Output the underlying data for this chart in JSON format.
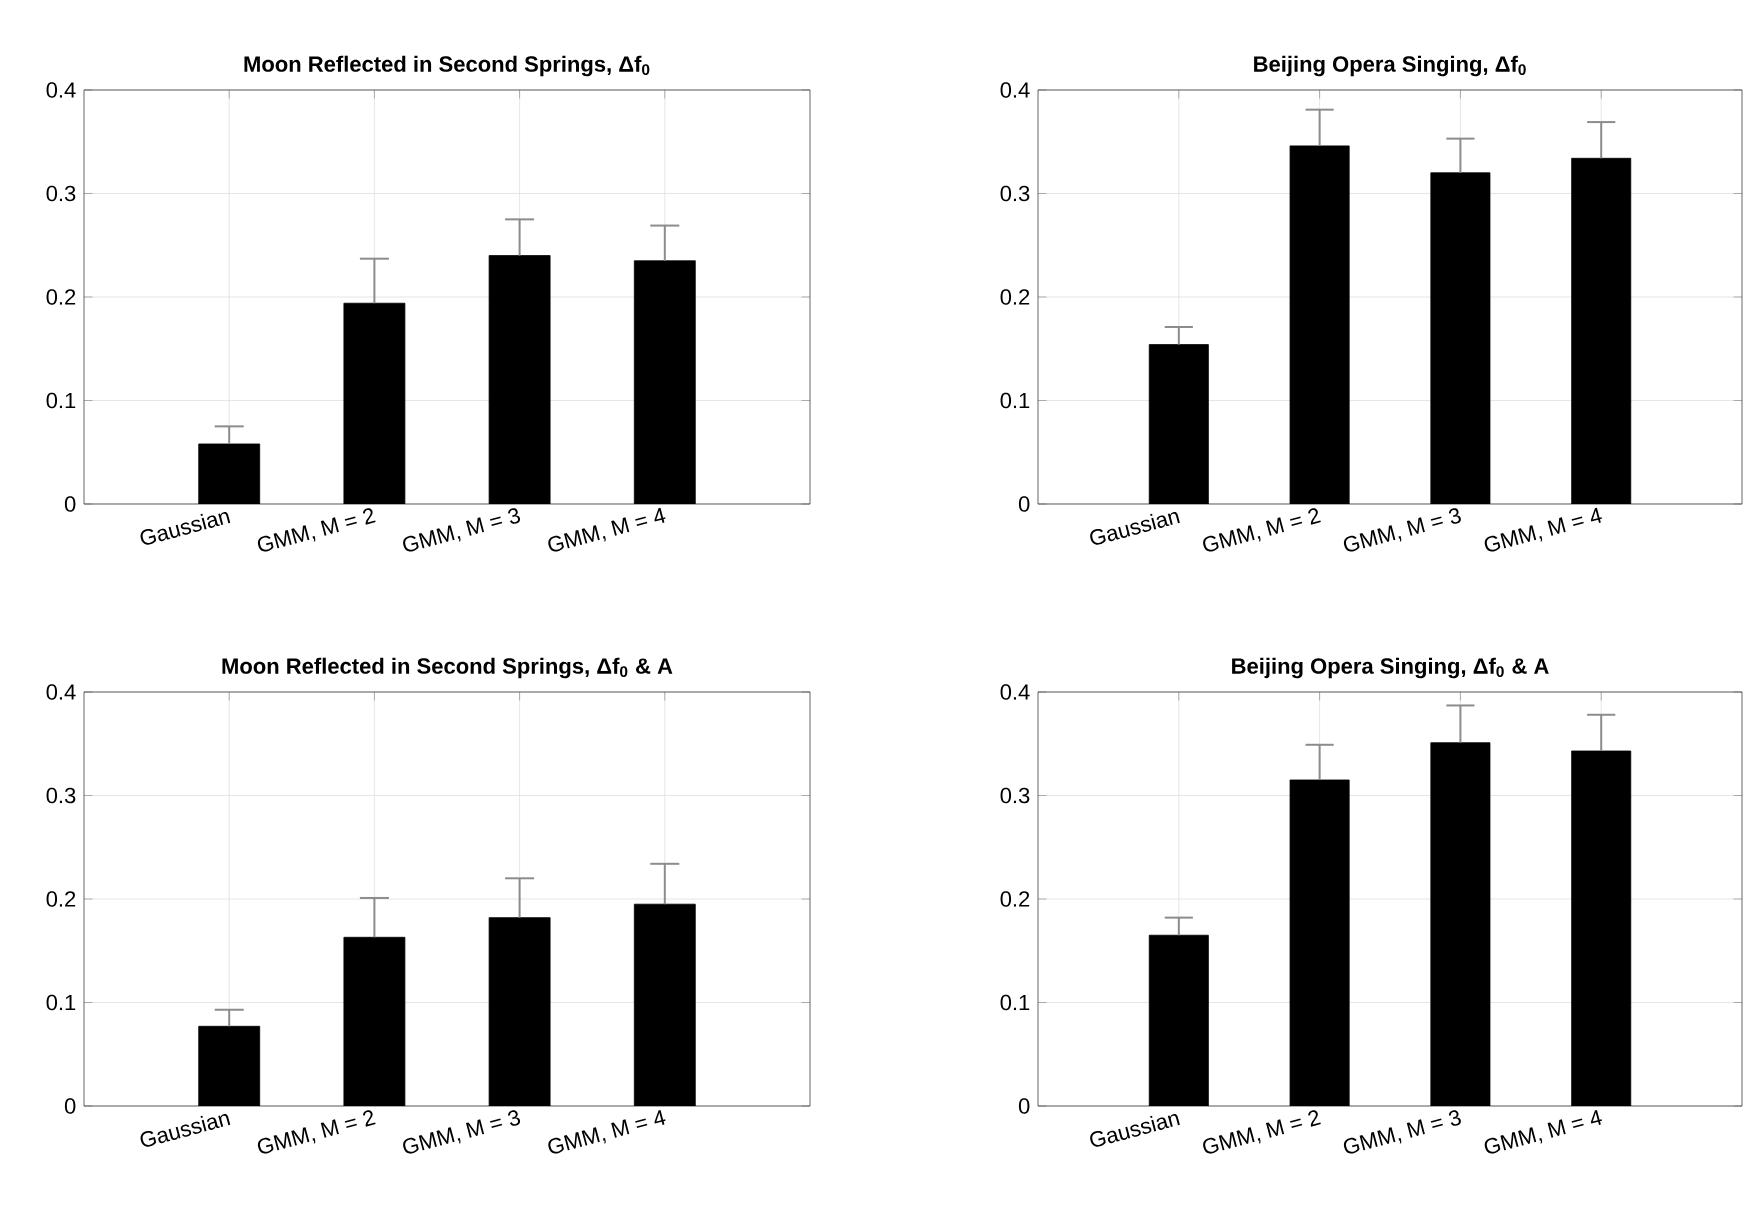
{
  "chart_data": [
    {
      "type": "bar",
      "title": "Moon Reflected in Second Springs, Δf$_{0}$",
      "categories": [
        "Gaussian",
        "GMM, M = 2",
        "GMM, M = 3",
        "GMM, M = 4"
      ],
      "values": [
        0.058,
        0.194,
        0.24,
        0.235
      ],
      "errors": [
        [
          0.058,
          0.075
        ],
        [
          0.194,
          0.237
        ],
        [
          0.24,
          0.275
        ],
        [
          0.235,
          0.269
        ]
      ],
      "color": "#000000",
      "ylim": [
        0,
        0.4
      ],
      "yticks": [
        0,
        0.1,
        0.2,
        0.3,
        0.4
      ],
      "grid": true
    },
    {
      "type": "bar",
      "title": "Beijing Opera Singing, Δf$_{0}$",
      "categories": [
        "Gaussian",
        "GMM, M = 2",
        "GMM, M = 3",
        "GMM, M = 4"
      ],
      "values": [
        0.154,
        0.346,
        0.32,
        0.334
      ],
      "errors": [
        [
          0.154,
          0.171
        ],
        [
          0.346,
          0.381
        ],
        [
          0.32,
          0.353
        ],
        [
          0.334,
          0.369
        ]
      ],
      "color": "#000000",
      "ylim": [
        0,
        0.4
      ],
      "yticks": [
        0,
        0.1,
        0.2,
        0.3,
        0.4
      ],
      "grid": true
    },
    {
      "type": "bar",
      "title": "Moon Reflected in Second Springs, Δf$_{0}$ & A",
      "categories": [
        "Gaussian",
        "GMM, M = 2",
        "GMM, M = 3",
        "GMM, M = 4"
      ],
      "values": [
        0.077,
        0.163,
        0.182,
        0.195
      ],
      "errors": [
        [
          0.077,
          0.093
        ],
        [
          0.163,
          0.201
        ],
        [
          0.182,
          0.22
        ],
        [
          0.195,
          0.234
        ]
      ],
      "color": "#000000",
      "ylim": [
        0,
        0.4
      ],
      "yticks": [
        0,
        0.1,
        0.2,
        0.3,
        0.4
      ],
      "grid": true
    },
    {
      "type": "bar",
      "title": "Beijing Opera Singing, Δf$_{0}$ & A",
      "categories": [
        "Gaussian",
        "GMM, M = 2",
        "GMM, M = 3",
        "GMM, M = 4"
      ],
      "values": [
        0.165,
        0.315,
        0.351,
        0.343
      ],
      "errors": [
        [
          0.165,
          0.182
        ],
        [
          0.315,
          0.349
        ],
        [
          0.351,
          0.387
        ],
        [
          0.343,
          0.378
        ]
      ],
      "color": "#000000",
      "ylim": [
        0,
        0.4
      ],
      "yticks": [
        0,
        0.1,
        0.2,
        0.3,
        0.4
      ],
      "grid": true
    }
  ]
}
